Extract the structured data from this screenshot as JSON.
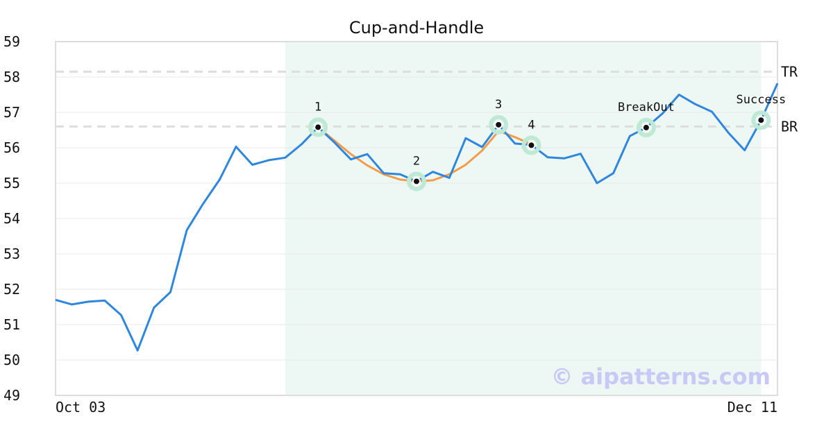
{
  "chart_data": {
    "type": "line",
    "title": "Cup-and-Handle",
    "ylim": [
      49,
      59
    ],
    "yticks": [
      "49",
      "50",
      "51",
      "52",
      "53",
      "54",
      "55",
      "56",
      "57",
      "58",
      "59"
    ],
    "x_start_label": "Oct 03",
    "x_end_label": "Dec 11",
    "grid": true,
    "highlight_range_index": [
      14,
      43
    ],
    "levels": [
      {
        "name": "TR",
        "value": 58.15
      },
      {
        "name": "BR",
        "value": 56.6
      }
    ],
    "series": [
      {
        "color": "#2e86de",
        "values": [
          51.7,
          51.57,
          51.65,
          51.68,
          51.27,
          50.27,
          51.48,
          51.92,
          53.67,
          54.42,
          55.1,
          56.03,
          55.52,
          55.65,
          55.72,
          56.1,
          56.58,
          56.15,
          55.67,
          55.82,
          55.28,
          55.25,
          55.05,
          55.32,
          55.15,
          56.27,
          56.02,
          56.65,
          56.12,
          56.08,
          55.73,
          55.7,
          55.83,
          55.0,
          55.28,
          56.33,
          56.57,
          56.97,
          57.5,
          57.23,
          57.02,
          56.43,
          55.93,
          56.78,
          57.82
        ]
      },
      {
        "color": "#f39c4a",
        "fit": "cup",
        "start_index": 16,
        "points": [
          [
            16,
            56.58
          ],
          [
            17,
            56.2
          ],
          [
            18,
            55.82
          ],
          [
            19,
            55.5
          ],
          [
            20,
            55.25
          ],
          [
            21,
            55.1
          ],
          [
            22,
            55.05
          ],
          [
            23,
            55.08
          ],
          [
            24,
            55.25
          ],
          [
            25,
            55.52
          ],
          [
            26,
            55.92
          ],
          [
            27,
            56.47
          ],
          [
            28,
            56.3
          ],
          [
            29,
            56.1
          ]
        ]
      }
    ],
    "points": [
      {
        "label": "1",
        "index": 16,
        "value": 56.58,
        "label_pos": "above"
      },
      {
        "label": "2",
        "index": 22,
        "value": 55.05,
        "label_pos": "above"
      },
      {
        "label": "3",
        "index": 27,
        "value": 56.65,
        "label_pos": "above"
      },
      {
        "label": "4",
        "index": 29,
        "value": 56.07,
        "label_pos": "above"
      },
      {
        "label": "BreakOut",
        "index": 36,
        "value": 56.57,
        "label_pos": "above"
      },
      {
        "label": "Success",
        "index": 43,
        "value": 56.78,
        "label_pos": "above"
      }
    ],
    "colors": {
      "price": "#2e86de",
      "fit": "#f39c4a",
      "highlight": "#edf7f3",
      "marker_halo": "#bfe9d7",
      "level": "#dddddd",
      "frame": "#dddddd"
    },
    "watermark": "© aipatterns.com"
  }
}
